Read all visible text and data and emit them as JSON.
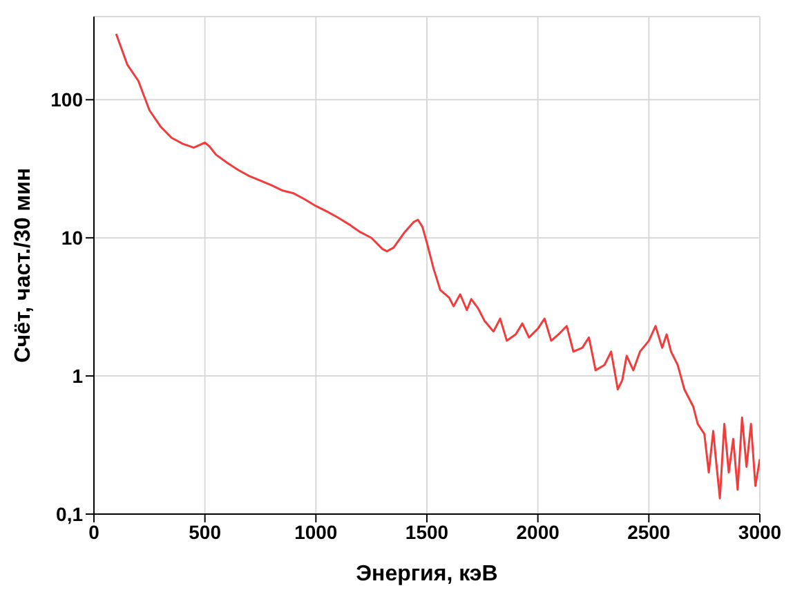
{
  "chart_data": {
    "type": "line",
    "xlabel": "Энергия, кэВ",
    "ylabel": "Счёт, част./30 мин",
    "log": "y",
    "grid": true,
    "marker": "none",
    "line_style": "solid",
    "xlim": [
      0,
      3000
    ],
    "xticks": [
      0,
      500,
      1000,
      1500,
      2000,
      2500,
      3000
    ],
    "ylim": [
      0.1,
      400
    ],
    "yticks": [
      {
        "value": 0.1,
        "label": "0,1"
      },
      1,
      10,
      100
    ],
    "series": [
      {
        "color": "#f23c3c",
        "x": [
          100,
          150,
          200,
          250,
          300,
          350,
          400,
          450,
          500,
          520,
          550,
          600,
          650,
          700,
          750,
          800,
          850,
          900,
          950,
          1000,
          1050,
          1100,
          1150,
          1200,
          1250,
          1300,
          1320,
          1350,
          1400,
          1440,
          1460,
          1480,
          1500,
          1530,
          1560,
          1600,
          1620,
          1650,
          1680,
          1700,
          1730,
          1760,
          1800,
          1830,
          1860,
          1900,
          1930,
          1960,
          2000,
          2030,
          2060,
          2100,
          2130,
          2160,
          2200,
          2230,
          2260,
          2300,
          2330,
          2360,
          2380,
          2400,
          2430,
          2460,
          2500,
          2530,
          2560,
          2580,
          2600,
          2630,
          2660,
          2700,
          2720,
          2750,
          2770,
          2790,
          2800,
          2820,
          2840,
          2860,
          2880,
          2900,
          2920,
          2940,
          2960,
          2980,
          3000
        ],
        "values": [
          300,
          180,
          137,
          84,
          64,
          53,
          48,
          45,
          49,
          46,
          40,
          35,
          31,
          28,
          26,
          24,
          22,
          21,
          19,
          17,
          15.5,
          14,
          12.5,
          11,
          10,
          8.3,
          8,
          8.5,
          11,
          13,
          13.5,
          12,
          9.2,
          6,
          4.2,
          3.7,
          3.2,
          3.9,
          3,
          3.6,
          3.1,
          2.5,
          2.1,
          2.6,
          1.8,
          2.0,
          2.4,
          1.9,
          2.2,
          2.6,
          1.8,
          2.05,
          2.3,
          1.5,
          1.6,
          1.9,
          1.1,
          1.2,
          1.5,
          0.8,
          0.93,
          1.4,
          1.1,
          1.5,
          1.8,
          2.3,
          1.6,
          2.0,
          1.5,
          1.2,
          0.8,
          0.6,
          0.45,
          0.38,
          0.2,
          0.4,
          0.27,
          0.13,
          0.45,
          0.2,
          0.35,
          0.15,
          0.5,
          0.22,
          0.45,
          0.16,
          0.25
        ]
      }
    ]
  }
}
